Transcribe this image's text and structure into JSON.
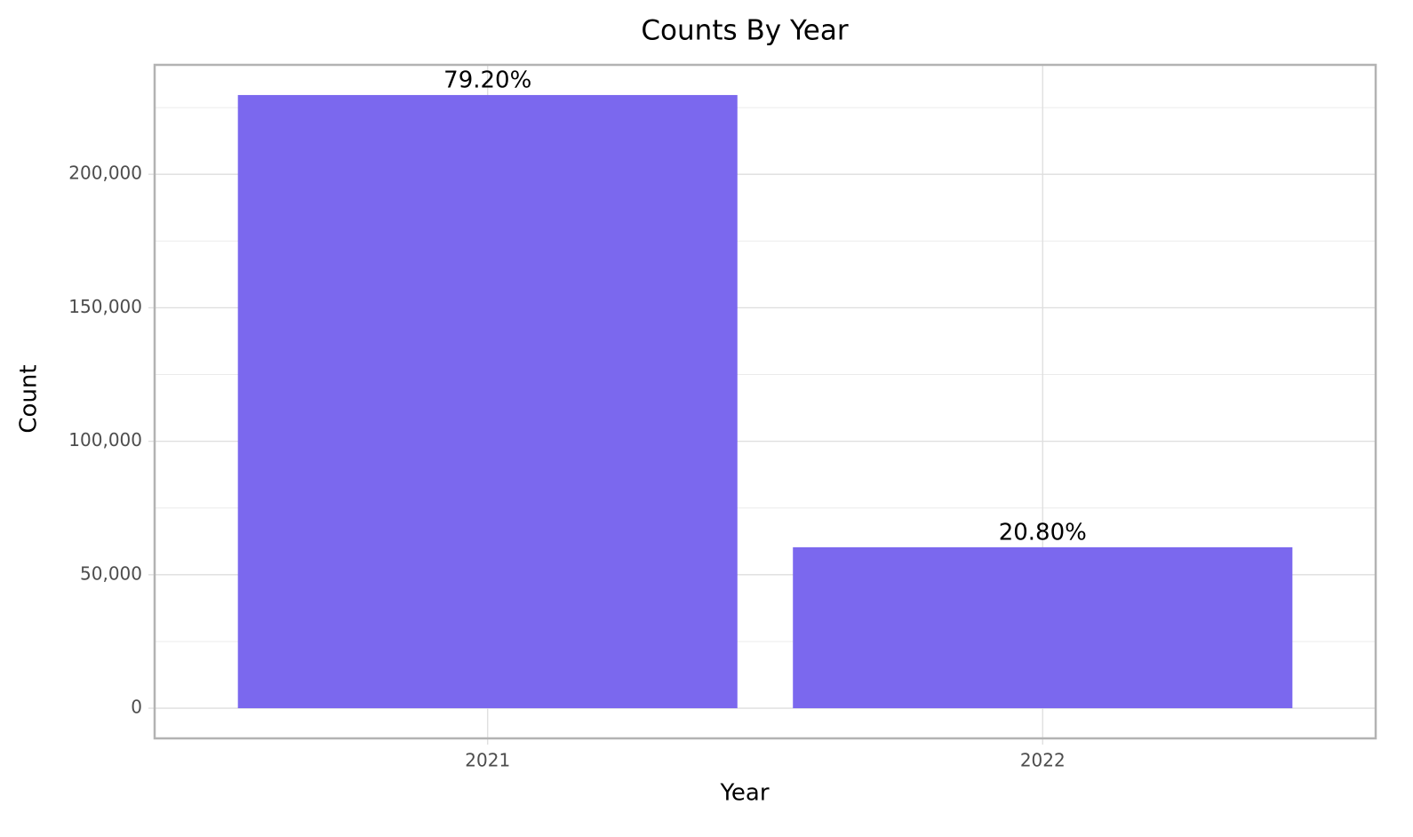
{
  "chart_data": {
    "type": "bar",
    "title": "Counts By Year",
    "x_label": "Year",
    "y_label": "Count",
    "categories": [
      "2021",
      "2022"
    ],
    "values": [
      229700,
      60300
    ],
    "color": "#7b68ee",
    "percent_labels": [
      {
        "value": 79.2,
        "label": "79.20%"
      },
      {
        "value": 20.8,
        "label": "20.80%"
      }
    ],
    "ylim": [
      -11300,
      241000
    ],
    "yticks": [
      0,
      {
        "value": 50000,
        "label": "50,000"
      },
      {
        "value": 100000,
        "label": "100,000"
      },
      {
        "value": 150000,
        "label": "150,000"
      },
      {
        "value": 200000,
        "label": "200,000"
      }
    ],
    "minor_yticks": [
      25000,
      75000,
      125000,
      175000,
      225000
    ],
    "grid": true
  }
}
